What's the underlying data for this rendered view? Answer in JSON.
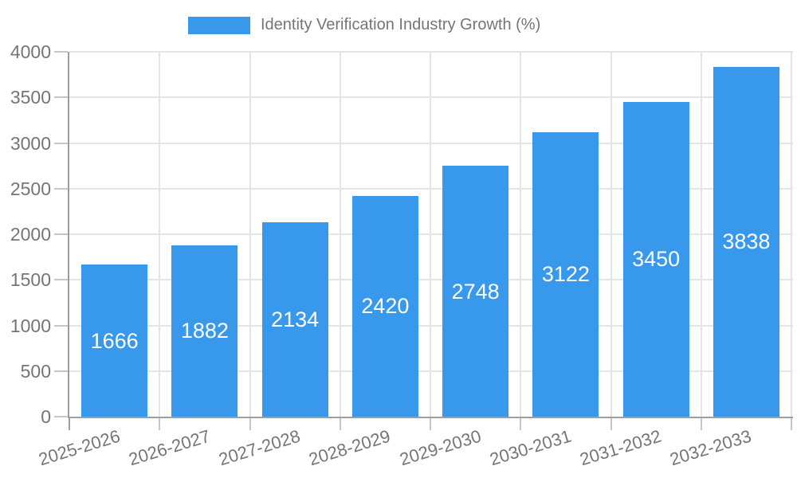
{
  "palette": {
    "bar": "#3899EC",
    "grid": "#E5E5E5",
    "axis": "#9E9E9E",
    "tick": "#C6C6C6",
    "axis_text": "#757575",
    "value_label_text": "#FFFFFF",
    "background": "#FFFFFF"
  },
  "legend": {
    "label": "Identity Verification Industry Growth (%)",
    "position": "top"
  },
  "chart_data": {
    "type": "bar",
    "title": "Identity Verification Industry Growth (%)",
    "categories": [
      "2025-2026",
      "2026-2027",
      "2027-2028",
      "2028-2029",
      "2029-2030",
      "2030-2031",
      "2031-2032",
      "2032-2033"
    ],
    "values": [
      1666,
      1882,
      2134,
      2420,
      2748,
      3122,
      3450,
      3838
    ],
    "series": [
      {
        "name": "Identity Verification Industry Growth (%)",
        "values": [
          1666,
          1882,
          2134,
          2420,
          2748,
          3122,
          3450,
          3838
        ]
      }
    ],
    "xlabel": "",
    "ylabel": "",
    "ylim": [
      0,
      4000
    ],
    "y_ticks": [
      0,
      500,
      1000,
      1500,
      2000,
      2500,
      3000,
      3500,
      4000
    ],
    "grid": true,
    "legend_position": "top-center",
    "value_labels_position": "inside-center",
    "x_tick_rotation_deg": -17
  }
}
